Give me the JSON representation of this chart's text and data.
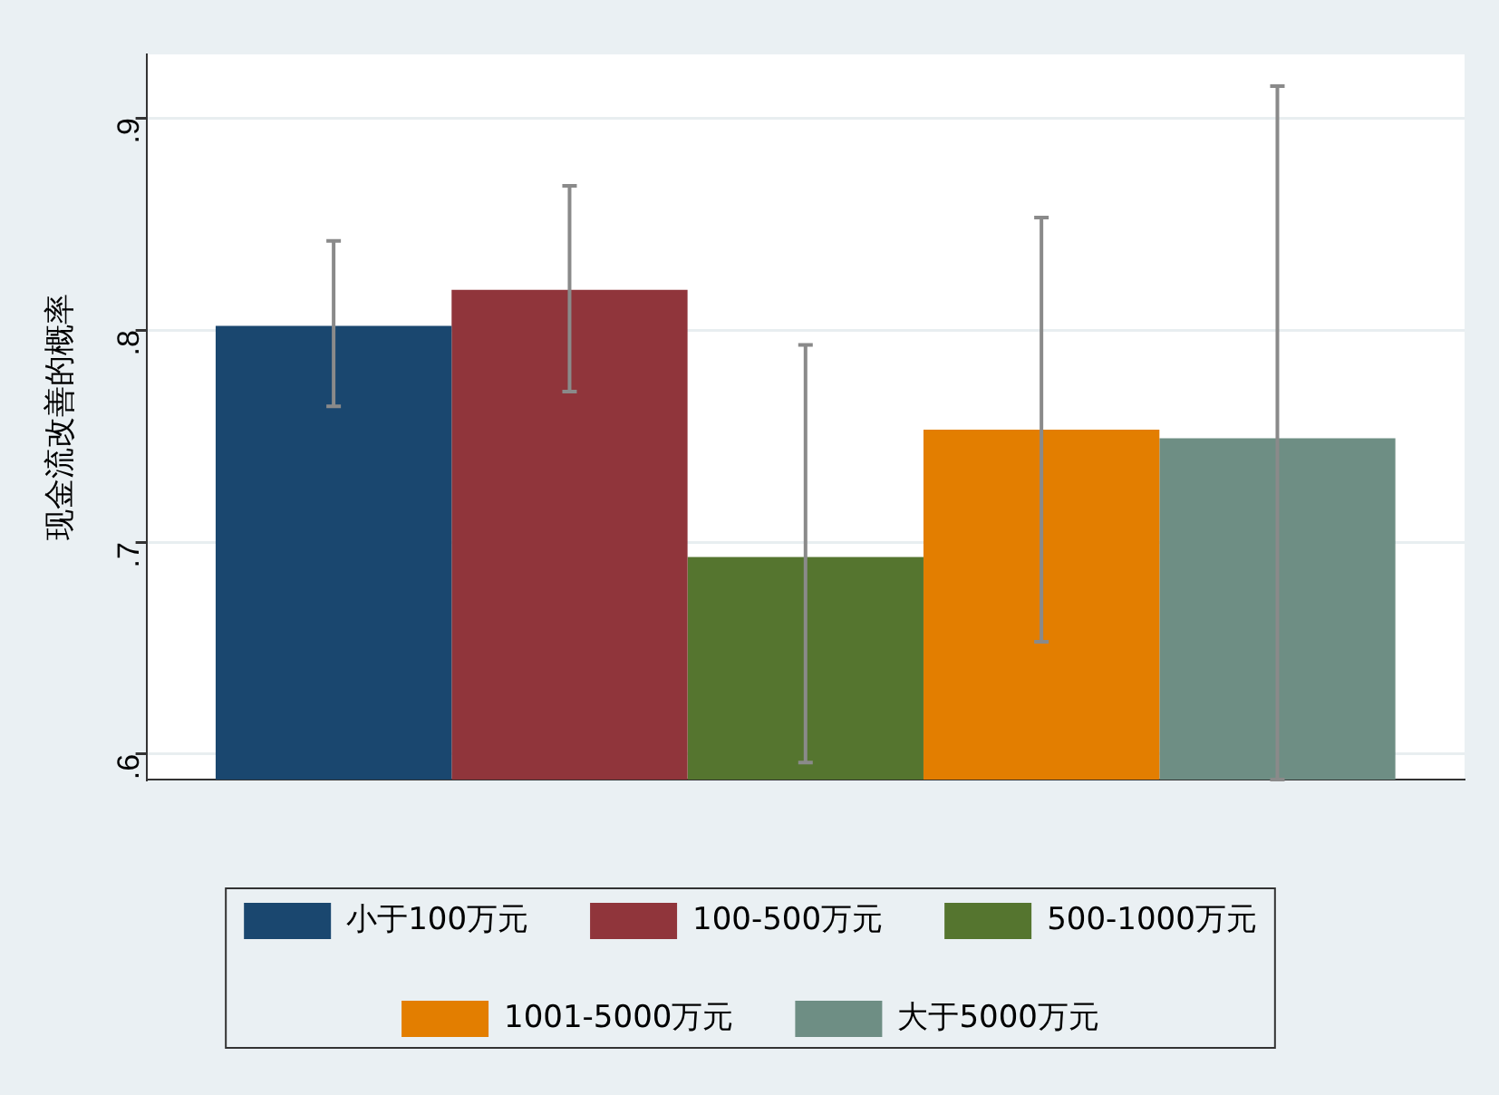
{
  "chart_data": {
    "type": "bar",
    "ylabel": "现金流改善的概率",
    "categories": [
      null
    ],
    "series": [
      {
        "name": "小于100万元",
        "color": "#1a476f",
        "values": [
          0.802
        ],
        "errors": [
          [
            0.764,
            0.842
          ]
        ]
      },
      {
        "name": "100-500万元",
        "color": "#90353b",
        "values": [
          0.819
        ],
        "errors": [
          [
            0.771,
            0.868
          ]
        ]
      },
      {
        "name": "500-1000万元",
        "color": "#55752f",
        "values": [
          0.693
        ],
        "errors": [
          [
            0.596,
            0.793
          ]
        ]
      },
      {
        "name": "1001-5000万元",
        "color": "#e37e00",
        "values": [
          0.753
        ],
        "errors": [
          [
            0.653,
            0.853
          ]
        ]
      },
      {
        "name": "大于5000万元",
        "color": "#6e8e84",
        "values": [
          0.749
        ],
        "errors": [
          [
            0.588,
            0.915
          ]
        ]
      }
    ],
    "ylim": [
      0.588,
      0.93
    ],
    "yticks": [
      {
        "value": 0.6,
        "label": ".6"
      },
      {
        "value": 0.7,
        "label": ".7"
      },
      {
        "value": 0.8,
        "label": ".8"
      },
      {
        "value": 0.9,
        "label": ".9"
      }
    ],
    "grid": "y",
    "legend": "bottom"
  }
}
